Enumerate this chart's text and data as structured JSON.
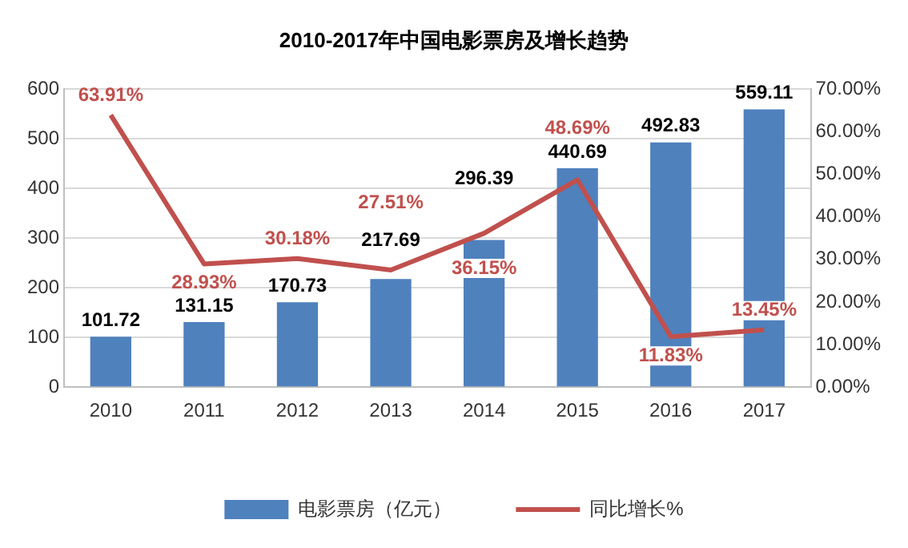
{
  "chart_data": {
    "type": "bar",
    "title": "2010-2017年中国电影票房及增长趋势",
    "categories": [
      "2010",
      "2011",
      "2012",
      "2013",
      "2014",
      "2015",
      "2016",
      "2017"
    ],
    "series": [
      {
        "name": "电影票房（亿元）",
        "type": "bar",
        "color": "#4f81bd",
        "values": [
          101.72,
          131.15,
          170.73,
          217.69,
          296.39,
          440.69,
          492.83,
          559.11
        ],
        "value_labels": [
          "101.72",
          "131.15",
          "170.73",
          "217.69",
          "296.39",
          "440.69",
          "492.83",
          "559.11"
        ]
      },
      {
        "name": "同比增长%",
        "type": "line",
        "axis": "y2",
        "color": "#c0504d",
        "values": [
          63.91,
          28.93,
          30.18,
          27.51,
          36.15,
          48.69,
          11.83,
          13.45
        ],
        "value_labels": [
          "63.91%",
          "28.93%",
          "30.18%",
          "27.51%",
          "36.15%",
          "48.69%",
          "11.83%",
          "13.45%"
        ]
      }
    ],
    "ylim": [
      0,
      600
    ],
    "yticks": [
      0,
      100,
      200,
      300,
      400,
      500,
      600
    ],
    "y2lim": [
      0,
      70
    ],
    "y2ticks": [
      {
        "value": 0,
        "label": "0.00%"
      },
      {
        "value": 10,
        "label": "10.00%"
      },
      {
        "value": 20,
        "label": "20.00%"
      },
      {
        "value": 30,
        "label": "30.00%"
      },
      {
        "value": 40,
        "label": "40.00%"
      },
      {
        "value": 50,
        "label": "50.00%"
      },
      {
        "value": 60,
        "label": "60.00%"
      },
      {
        "value": 70,
        "label": "70.00%"
      }
    ],
    "grid": "y",
    "legend": "bottom",
    "marker": "none",
    "line_style": "solid"
  }
}
